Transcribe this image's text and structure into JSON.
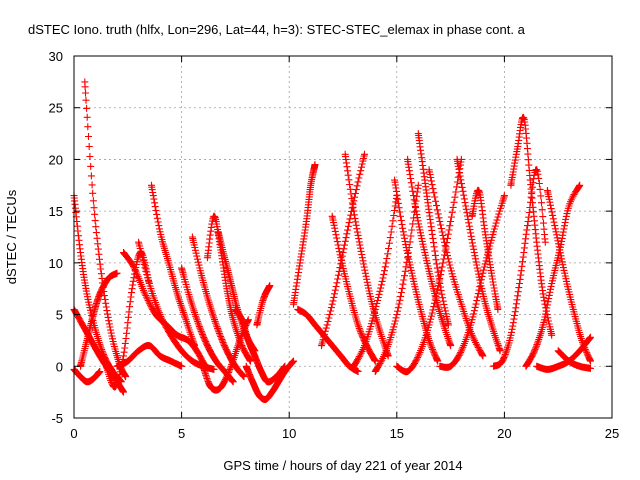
{
  "chart_data": {
    "type": "scatter",
    "title": "dSTEC Iono. truth (hlfx, Lon=296, Lat=44, h=3): STEC-STEC_elemax in phase cont. a",
    "xlabel": "GPS time / hours of day 221 of year 2014",
    "ylabel": "dSTEC  / TECUs",
    "xlim": [
      0,
      25
    ],
    "ylim": [
      -5,
      30
    ],
    "xticks": [
      0,
      5,
      10,
      15,
      20,
      25
    ],
    "yticks": [
      -5,
      0,
      5,
      10,
      15,
      20,
      25,
      30
    ],
    "grid": true,
    "marker": "+",
    "color": "#ff0000",
    "series": [
      {
        "x": [
          0.0,
          0.3,
          0.6,
          1.0,
          1.4,
          1.8,
          2.2
        ],
        "y": [
          16.5,
          11.0,
          7.0,
          3.5,
          1.0,
          -0.5,
          -1.5
        ]
      },
      {
        "x": [
          0.5,
          0.9,
          1.3,
          1.7,
          2.1,
          2.4
        ],
        "y": [
          27.5,
          16.0,
          8.5,
          3.5,
          0.3,
          -1.0
        ]
      },
      {
        "x": [
          0.0,
          0.4,
          0.8,
          1.2,
          1.6,
          2.0,
          2.3
        ],
        "y": [
          5.5,
          4.0,
          2.5,
          1.0,
          -0.3,
          -1.5,
          -2.5
        ]
      },
      {
        "x": [
          0.0,
          0.3,
          0.6,
          0.9,
          1.2
        ],
        "y": [
          -0.3,
          -1.0,
          -1.5,
          -1.2,
          -0.5
        ]
      },
      {
        "x": [
          0.3,
          0.6,
          0.9,
          1.2,
          1.6,
          2.0
        ],
        "y": [
          0.0,
          2.5,
          5.0,
          7.0,
          8.5,
          9.0
        ]
      },
      {
        "x": [
          1.5,
          1.9,
          2.3,
          2.7,
          3.1,
          3.5
        ],
        "y": [
          0.0,
          -2.0,
          1.0,
          7.5,
          11.0,
          8.0
        ]
      },
      {
        "x": [
          2.3,
          2.8,
          3.3,
          3.8,
          4.3,
          4.8,
          5.3,
          5.7,
          6.1
        ],
        "y": [
          11.0,
          9.5,
          7.0,
          5.0,
          4.0,
          3.0,
          2.5,
          1.5,
          0.0
        ]
      },
      {
        "x": [
          3.0,
          3.5,
          4.0,
          4.5,
          5.0,
          5.5,
          6.0,
          6.5
        ],
        "y": [
          12.0,
          8.0,
          5.0,
          3.0,
          1.5,
          0.5,
          0.0,
          -0.3
        ]
      },
      {
        "x": [
          3.6,
          4.0,
          4.4,
          4.8,
          5.2,
          5.6
        ],
        "y": [
          17.5,
          13.0,
          10.0,
          7.0,
          4.5,
          2.0
        ]
      },
      {
        "x": [
          2.0,
          2.5,
          3.0,
          3.5,
          4.0,
          4.5,
          5.0
        ],
        "y": [
          0.0,
          0.5,
          1.5,
          2.0,
          1.0,
          0.5,
          0.0
        ]
      },
      {
        "x": [
          5.0,
          5.4,
          5.8,
          6.2,
          6.6,
          7.0,
          7.4
        ],
        "y": [
          9.5,
          6.5,
          4.0,
          2.0,
          0.5,
          -0.5,
          -1.5
        ]
      },
      {
        "x": [
          5.5,
          5.9,
          6.3,
          6.7,
          7.1,
          7.5,
          7.9
        ],
        "y": [
          12.5,
          9.0,
          6.0,
          3.5,
          1.5,
          0.0,
          -1.0
        ]
      },
      {
        "x": [
          6.0,
          6.3,
          6.6,
          6.9,
          7.3,
          7.7,
          8.1
        ],
        "y": [
          0.0,
          -1.8,
          -2.3,
          -1.8,
          0.0,
          2.5,
          4.5
        ]
      },
      {
        "x": [
          6.2,
          6.5,
          6.8,
          7.1,
          7.4,
          7.8,
          8.2
        ],
        "y": [
          10.5,
          14.5,
          11.5,
          7.5,
          4.5,
          2.0,
          0.5
        ]
      },
      {
        "x": [
          6.7,
          7.0,
          7.3,
          7.6,
          8.0,
          8.4
        ],
        "y": [
          13.0,
          10.5,
          8.0,
          5.5,
          3.0,
          1.5
        ]
      },
      {
        "x": [
          7.5,
          7.8,
          8.1,
          8.4,
          8.7,
          9.0,
          9.4,
          9.8
        ],
        "y": [
          5.5,
          4.5,
          2.5,
          1.0,
          -0.5,
          -1.5,
          -1.0,
          0.0
        ]
      },
      {
        "x": [
          8.0,
          8.3,
          8.6,
          8.9,
          9.2,
          9.5,
          9.8,
          10.2
        ],
        "y": [
          0.0,
          -1.5,
          -2.8,
          -3.2,
          -2.5,
          -1.5,
          -0.5,
          0.5
        ]
      },
      {
        "x": [
          8.5,
          8.8,
          9.1
        ],
        "y": [
          4.0,
          6.5,
          7.8
        ]
      },
      {
        "x": [
          10.2,
          10.5,
          10.8,
          11.0,
          11.2
        ],
        "y": [
          6.0,
          10.0,
          14.0,
          17.5,
          19.5
        ]
      },
      {
        "x": [
          10.4,
          10.8,
          11.2,
          11.6,
          12.0,
          12.4,
          12.8,
          13.2
        ],
        "y": [
          5.5,
          5.0,
          4.0,
          3.0,
          2.0,
          1.0,
          0.0,
          -0.5
        ]
      },
      {
        "x": [
          11.5,
          12.0,
          12.5,
          13.0,
          13.5
        ],
        "y": [
          2.0,
          6.0,
          11.0,
          16.0,
          20.5
        ]
      },
      {
        "x": [
          12.0,
          12.4,
          12.8,
          13.2,
          13.6,
          14.0
        ],
        "y": [
          14.5,
          10.5,
          7.0,
          4.0,
          2.0,
          0.5
        ]
      },
      {
        "x": [
          12.6,
          13.0,
          13.4,
          13.8,
          14.2,
          14.6
        ],
        "y": [
          20.5,
          15.0,
          10.5,
          6.5,
          3.5,
          1.0
        ]
      },
      {
        "x": [
          13.0,
          13.5,
          14.0,
          14.5,
          15.0
        ],
        "y": [
          0.0,
          2.0,
          5.5,
          10.0,
          16.5
        ]
      },
      {
        "x": [
          14.0,
          14.5,
          15.0,
          15.5,
          16.0
        ],
        "y": [
          -0.5,
          1.5,
          5.0,
          10.5,
          17.5
        ]
      },
      {
        "x": [
          14.9,
          15.3,
          15.7,
          16.1,
          16.5,
          16.9
        ],
        "y": [
          18.0,
          13.0,
          9.0,
          5.5,
          2.5,
          0.5
        ]
      },
      {
        "x": [
          15.5,
          15.9,
          16.3,
          16.7,
          17.1,
          17.5
        ],
        "y": [
          20.0,
          15.0,
          11.0,
          7.5,
          4.5,
          2.0
        ]
      },
      {
        "x": [
          15.0,
          15.5,
          16.0,
          16.5,
          17.0,
          17.5,
          18.0
        ],
        "y": [
          0.0,
          -0.5,
          1.0,
          4.0,
          8.5,
          14.0,
          20.0
        ]
      },
      {
        "x": [
          16.0,
          16.3,
          16.6,
          17.0,
          17.4
        ],
        "y": [
          22.5,
          18.0,
          13.5,
          8.0,
          4.0
        ]
      },
      {
        "x": [
          16.5,
          17.0,
          17.5,
          18.0,
          18.5,
          19.0
        ],
        "y": [
          19.0,
          14.0,
          9.5,
          6.0,
          3.0,
          1.0
        ]
      },
      {
        "x": [
          17.0,
          17.5,
          18.0,
          18.5,
          19.0,
          19.5,
          20.0
        ],
        "y": [
          0.0,
          0.0,
          1.5,
          4.5,
          9.0,
          13.0,
          16.5
        ]
      },
      {
        "x": [
          17.8,
          18.2,
          18.6,
          19.0,
          19.4,
          19.8
        ],
        "y": [
          20.0,
          15.5,
          11.0,
          7.0,
          4.0,
          1.5
        ]
      },
      {
        "x": [
          18.5,
          18.8,
          19.1,
          19.4,
          19.7
        ],
        "y": [
          14.5,
          17.0,
          13.0,
          9.0,
          5.5
        ]
      },
      {
        "x": [
          19.5,
          19.9,
          20.3,
          20.7,
          21.1,
          21.5,
          21.9
        ],
        "y": [
          0.0,
          0.5,
          3.0,
          8.0,
          14.0,
          19.0,
          12.0
        ]
      },
      {
        "x": [
          20.3,
          20.6,
          20.9,
          21.2,
          21.5,
          21.8,
          22.2
        ],
        "y": [
          17.5,
          21.0,
          24.0,
          18.0,
          12.0,
          7.0,
          3.0
        ]
      },
      {
        "x": [
          21.0,
          21.4,
          21.8,
          22.2,
          22.6,
          23.0,
          23.5
        ],
        "y": [
          0.0,
          1.5,
          4.0,
          8.0,
          11.5,
          15.5,
          17.5
        ]
      },
      {
        "x": [
          22.0,
          22.4,
          22.8,
          23.2,
          23.6,
          24.0
        ],
        "y": [
          17.0,
          13.0,
          9.0,
          5.5,
          2.5,
          0.5
        ]
      },
      {
        "x": [
          21.5,
          22.0,
          22.5,
          23.0,
          23.5,
          24.0
        ],
        "y": [
          0.0,
          -0.3,
          0.0,
          0.5,
          1.5,
          2.8
        ]
      },
      {
        "x": [
          22.5,
          23.0,
          23.5,
          24.0
        ],
        "y": [
          1.5,
          0.5,
          0.0,
          -0.2
        ]
      }
    ]
  }
}
